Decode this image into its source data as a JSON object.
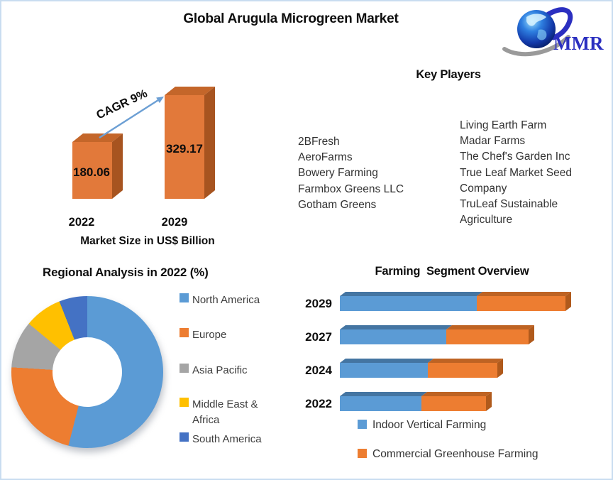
{
  "page": {
    "title": "Global Arugula Microgreen Market"
  },
  "logo": {
    "text": "MMR",
    "text_color": "#2B2FC0"
  },
  "key_players": {
    "title": "Key Players",
    "column_left": [
      "2BFresh",
      "AeroFarms",
      "Bowery Farming",
      "Farmbox Greens LLC",
      "Gotham Greens"
    ],
    "column_right": [
      "Living Earth Farm",
      "Madar Farms",
      "The Chef's Garden Inc",
      "True Leaf Market Seed Company",
      "TruLeaf Sustainable Agriculture"
    ]
  },
  "chart_data": [
    {
      "type": "bar",
      "subtype": "3d-column",
      "title": "Market Size in US$ Billion",
      "categories": [
        "2022",
        "2029"
      ],
      "values": [
        180.06,
        329.17
      ],
      "unit": "US$ Billion",
      "annotation": "CAGR 9%",
      "bar_color": "#E2793A",
      "bar_top_color": "#C4662A",
      "bar_side_color": "#A75420",
      "arrow_color": "#6C9FD4"
    },
    {
      "type": "pie",
      "subtype": "donut",
      "title": "Regional Analysis in 2022 (%)",
      "labels": [
        "North America",
        "Europe",
        "Asia Pacific",
        "Middle East & Africa",
        "South America"
      ],
      "values": [
        54,
        22,
        10,
        8,
        6
      ],
      "values_estimated": true,
      "colors": [
        "#5B9BD5",
        "#ED7D31",
        "#A5A5A5",
        "#FFC000",
        "#4472C4"
      ],
      "legend_position": "right"
    },
    {
      "type": "bar",
      "subtype": "horizontal-stacked-3d",
      "title": "Farming  Segment Overview",
      "categories": [
        "2029",
        "2027",
        "2024",
        "2022"
      ],
      "series": [
        {
          "name": "Indoor Vertical Farming",
          "color": "#5B9BD5",
          "top_color": "#4475A2",
          "values": [
            193,
            150,
            124,
            115
          ]
        },
        {
          "name": "Commercial Greenhouse Farming",
          "color": "#ED7D31",
          "top_color": "#BE6323",
          "side_color": "#B05A1C",
          "values": [
            125,
            116,
            98,
            91
          ]
        }
      ],
      "values_estimated": true,
      "legend_position": "bottom"
    }
  ]
}
